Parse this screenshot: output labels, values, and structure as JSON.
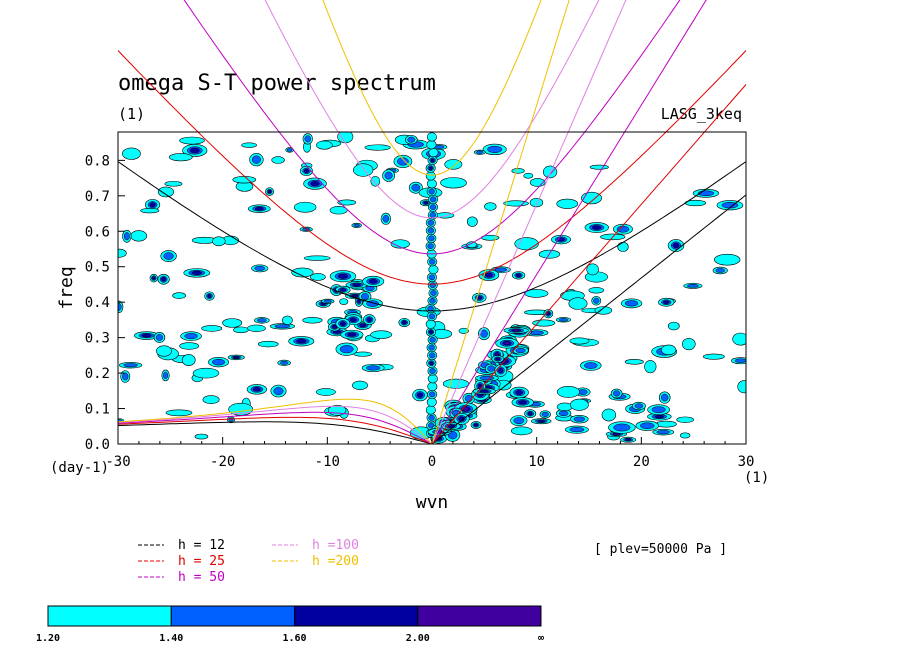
{
  "chart_data": {
    "type": "contour",
    "title": "omega S-T power spectrum",
    "subtitle_left": "(1)",
    "subtitle_right": "LASG_3keq",
    "xlabel": "wvn",
    "ylabel": "freq",
    "x_units_label": "(1)",
    "y_units_label": "(day-1)",
    "xlim": [
      -30,
      30
    ],
    "ylim": [
      0,
      0.88
    ],
    "x_ticks": [
      -30,
      -20,
      -10,
      0,
      10,
      20,
      30
    ],
    "x_tick_labels": [
      "-30",
      "-20",
      "-10",
      "0",
      "10",
      "20",
      "30"
    ],
    "y_ticks": [
      0,
      0.1,
      0.2,
      0.3,
      0.4,
      0.5,
      0.6,
      0.7,
      0.8
    ],
    "y_tick_labels": [
      "0.0",
      "0.1",
      "0.2",
      "0.3",
      "0.4",
      "0.5",
      "0.6",
      "0.7",
      "0.8"
    ],
    "annotation": "[ plev=50000 Pa ]",
    "dispersion_curves": [
      {
        "label": "h = 12",
        "h": 12,
        "color": "#000000"
      },
      {
        "label": "h = 25",
        "h": 25,
        "color": "#e00000"
      },
      {
        "label": "h = 50",
        "h": 50,
        "color": "#c000c0"
      },
      {
        "label": "h =100",
        "h": 100,
        "color": "#e080e0"
      },
      {
        "label": "h =200",
        "h": 200,
        "color": "#f0c000"
      }
    ],
    "colorbar": {
      "levels": [
        "1.20",
        "1.40",
        "1.60",
        "2.00",
        "∞"
      ],
      "colors": [
        "#00ffff",
        "#0060ff",
        "#0000a0",
        "#4000a0"
      ]
    },
    "power_features": [
      {
        "wvn": 0,
        "freq_range": [
          0.02,
          0.88
        ],
        "level": 2,
        "note": "vertical band at zero wavenumber"
      },
      {
        "wvn_range": [
          1,
          8
        ],
        "freq_range": [
          0.02,
          0.35
        ],
        "level": 3,
        "note": "eastward ridge along Kelvin curves"
      },
      {
        "wvn_range": [
          -9,
          -6
        ],
        "freq_range": [
          0.3,
          0.45
        ],
        "level": 2,
        "note": "westward cluster"
      }
    ]
  }
}
